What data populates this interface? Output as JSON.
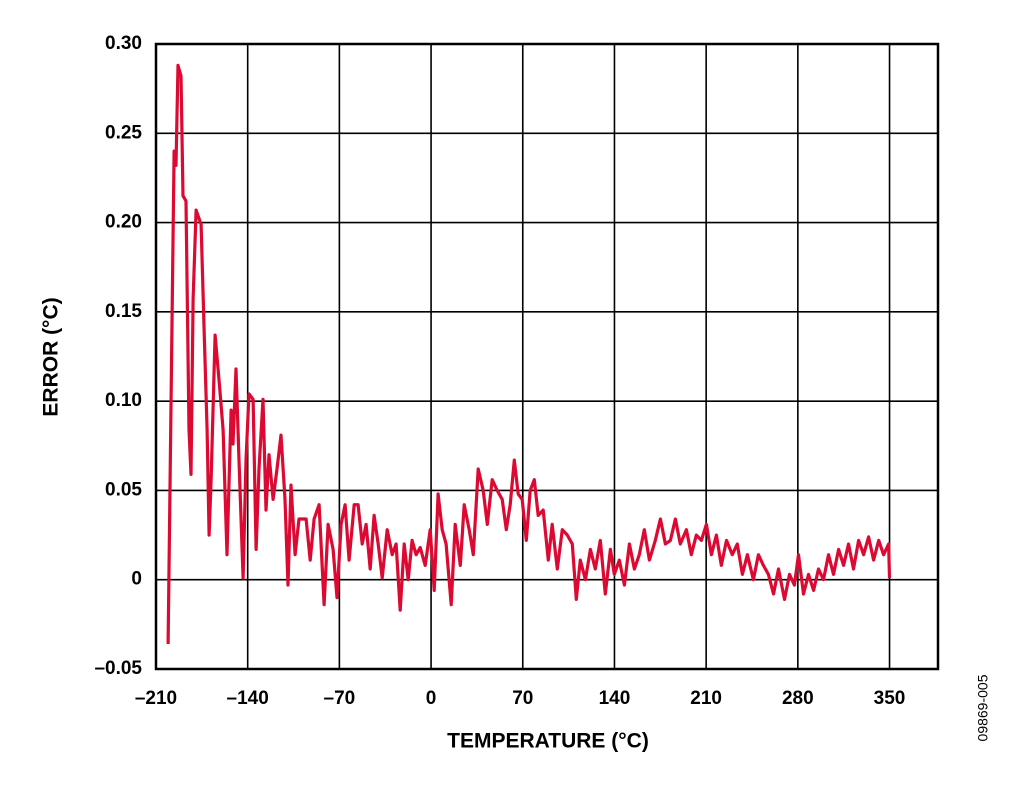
{
  "chart_data": {
    "type": "line",
    "x_label": "TEMPERATURE (°C)",
    "y_label": "ERROR (°C)",
    "figure_id": "09869-005",
    "color": "#dc0a32",
    "grid": true,
    "xlim": [
      -210,
      387
    ],
    "ylim": [
      -0.05,
      0.3
    ],
    "xticks": [
      {
        "value": -210,
        "label": "–210"
      },
      {
        "value": -140,
        "label": "–140"
      },
      {
        "value": -70,
        "label": "–70"
      },
      0,
      70,
      140,
      210,
      280,
      350
    ],
    "yticks": [
      {
        "value": -0.05,
        "label": "–0.05"
      },
      0,
      {
        "value": 0.05,
        "label": "0.05"
      },
      {
        "value": 0.1,
        "label": "0.10"
      },
      {
        "value": 0.15,
        "label": "0.15"
      },
      {
        "value": 0.2,
        "label": "0.20"
      },
      {
        "value": 0.25,
        "label": "0.25"
      },
      {
        "value": 0.3,
        "label": "0.30"
      }
    ],
    "x": [
      -200.8,
      -196.2,
      -194.7,
      -193.2,
      -190.9,
      -189.4,
      -187.1,
      -184.8,
      -183.3,
      -181.7,
      -179.4,
      -175.6,
      -173.3,
      -171.0,
      -169.5,
      -167.9,
      -164.9,
      -161.9,
      -158.8,
      -155.8,
      -152.7,
      -151.2,
      -148.9,
      -146.6,
      -143.5,
      -141.3,
      -139.0,
      -135.9,
      -133.6,
      -131.4,
      -128.3,
      -126.0,
      -123.7,
      -120.6,
      -117.6,
      -114.6,
      -111.5,
      -109.2,
      -106.9,
      -103.8,
      -100.8,
      -95.4,
      -92.3,
      -89.3,
      -85.5,
      -81.7,
      -78.6,
      -74.8,
      -71.8,
      -68.7,
      -65.6,
      -62.6,
      -58.7,
      -55.7,
      -52.6,
      -49.6,
      -46.5,
      -43.5,
      -40.4,
      -37.3,
      -33.5,
      -29.7,
      -26.7,
      -23.6,
      -20.5,
      -17.5,
      -14.5,
      -11.4,
      -8.3,
      -4.5,
      -0.7,
      2.4,
      5.4,
      8.5,
      11.5,
      15.4,
      18.4,
      22.3,
      25.3,
      29.1,
      32.2,
      36.0,
      39.8,
      42.9,
      46.7,
      50.5,
      54.3,
      57.4,
      60.4,
      63.5,
      66.5,
      69.6,
      72.7,
      75.7,
      78.8,
      81.8,
      85.6,
      89.5,
      92.5,
      96.4,
      100.2,
      104.0,
      107.8,
      110.9,
      113.9,
      117.8,
      121.6,
      125.4,
      129.2,
      133.0,
      136.9,
      139.9,
      143.7,
      147.6,
      151.4,
      155.2,
      159.0,
      162.8,
      166.7,
      171.2,
      175.1,
      178.9,
      182.7,
      186.5,
      190.3,
      194.9,
      198.7,
      202.5,
      206.4,
      210.2,
      214.0,
      217.8,
      221.6,
      225.5,
      230.0,
      233.8,
      237.7,
      241.5,
      246.1,
      249.9,
      253.7,
      257.5,
      261.4,
      265.2,
      269.8,
      273.6,
      277.4,
      280.5,
      284.3,
      288.1,
      292.0,
      295.8,
      299.6,
      303.4,
      307.2,
      311.1,
      314.9,
      318.7,
      322.5,
      326.4,
      330.2,
      334.0,
      337.8,
      341.7,
      345.5,
      349.3,
      350.0
    ],
    "values": [
      -0.036,
      0.24,
      0.232,
      0.288,
      0.282,
      0.215,
      0.212,
      0.084,
      0.059,
      0.157,
      0.207,
      0.199,
      0.14,
      0.084,
      0.025,
      0.056,
      0.137,
      0.112,
      0.084,
      0.014,
      0.095,
      0.076,
      0.118,
      0.067,
      0.001,
      0.067,
      0.104,
      0.101,
      0.017,
      0.062,
      0.101,
      0.039,
      0.07,
      0.045,
      0.062,
      0.081,
      0.045,
      -0.003,
      0.053,
      0.014,
      0.034,
      0.034,
      0.011,
      0.034,
      0.042,
      -0.014,
      0.031,
      0.017,
      -0.01,
      0.031,
      0.042,
      0.011,
      0.042,
      0.042,
      0.02,
      0.031,
      0.006,
      0.036,
      0.02,
      0.001,
      0.028,
      0.014,
      0.02,
      -0.017,
      0.02,
      0.0,
      0.022,
      0.014,
      0.018,
      0.008,
      0.028,
      -0.006,
      0.048,
      0.028,
      0.02,
      -0.014,
      0.031,
      0.008,
      0.042,
      0.028,
      0.014,
      0.062,
      0.05,
      0.031,
      0.056,
      0.05,
      0.045,
      0.028,
      0.042,
      0.067,
      0.048,
      0.045,
      0.022,
      0.05,
      0.056,
      0.036,
      0.039,
      0.011,
      0.031,
      0.006,
      0.028,
      0.025,
      0.02,
      -0.011,
      0.011,
      0.0,
      0.017,
      0.006,
      0.022,
      -0.008,
      0.017,
      0.003,
      0.011,
      -0.003,
      0.02,
      0.006,
      0.014,
      0.028,
      0.011,
      0.022,
      0.034,
      0.02,
      0.022,
      0.034,
      0.02,
      0.028,
      0.014,
      0.025,
      0.022,
      0.031,
      0.014,
      0.025,
      0.008,
      0.022,
      0.014,
      0.02,
      0.003,
      0.014,
      0.0,
      0.014,
      0.008,
      0.003,
      -0.008,
      0.006,
      -0.011,
      0.003,
      -0.003,
      0.014,
      -0.008,
      0.003,
      -0.006,
      0.006,
      0.0,
      0.014,
      0.003,
      0.017,
      0.008,
      0.02,
      0.006,
      0.022,
      0.014,
      0.024,
      0.011,
      0.022,
      0.014,
      0.02,
      0.001
    ]
  }
}
